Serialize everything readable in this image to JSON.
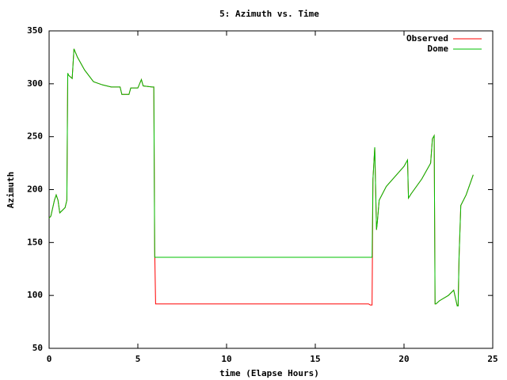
{
  "chart_data": {
    "type": "line",
    "title": "5: Azimuth vs. Time",
    "x_label": "time (Elapse Hours)",
    "y_label": "Azimuth",
    "x": [
      0,
      0.1,
      0.3,
      0.4,
      0.5,
      0.6,
      0.9,
      1.0,
      1.05,
      1.1,
      1.3,
      1.4,
      1.6,
      2.0,
      2.5,
      3.0,
      3.5,
      4.0,
      4.1,
      4.5,
      4.6,
      5.0,
      5.2,
      5.3,
      5.8,
      5.9,
      5.95,
      6.0,
      10,
      15,
      18.0,
      18.1,
      18.2,
      18.25,
      18.35,
      18.45,
      18.5,
      18.6,
      19.0,
      20.0,
      20.2,
      20.25,
      20.4,
      21.0,
      21.5,
      21.6,
      21.7,
      21.75,
      21.8,
      22.0,
      22.5,
      22.8,
      23.0,
      23.05,
      23.1,
      23.2,
      23.5,
      23.9
    ],
    "series": [
      {
        "name": "Observed",
        "color": "#ff0000",
        "values": [
          173,
          175,
          190,
          195,
          190,
          178,
          183,
          190,
          310,
          308,
          305,
          333,
          325,
          313,
          302,
          299,
          297,
          297,
          290,
          290,
          296,
          296,
          304,
          298,
          297,
          297,
          145,
          92,
          92,
          92,
          92,
          91,
          91,
          210,
          240,
          162,
          170,
          190,
          203,
          222,
          228,
          192,
          196,
          210,
          225,
          248,
          251,
          92,
          92,
          95,
          100,
          105,
          90,
          90,
          135,
          185,
          195,
          214
        ]
      },
      {
        "name": "Dome",
        "color": "#00c000",
        "values": [
          173,
          175,
          190,
          195,
          190,
          178,
          183,
          190,
          310,
          308,
          305,
          333,
          325,
          313,
          302,
          299,
          297,
          297,
          290,
          290,
          296,
          296,
          304,
          298,
          297,
          297,
          136,
          136,
          136,
          136,
          136,
          136,
          136,
          210,
          240,
          162,
          170,
          190,
          203,
          222,
          228,
          192,
          196,
          210,
          225,
          248,
          251,
          92,
          92,
          95,
          100,
          105,
          90,
          90,
          135,
          185,
          195,
          214
        ]
      }
    ],
    "xlim": [
      0,
      25
    ],
    "xticks": [
      0,
      5,
      10,
      15,
      20,
      25
    ],
    "ylim": [
      50,
      350
    ],
    "yticks": [
      50,
      100,
      150,
      200,
      250,
      300,
      350
    ],
    "grid": false,
    "legend": "top-right"
  }
}
